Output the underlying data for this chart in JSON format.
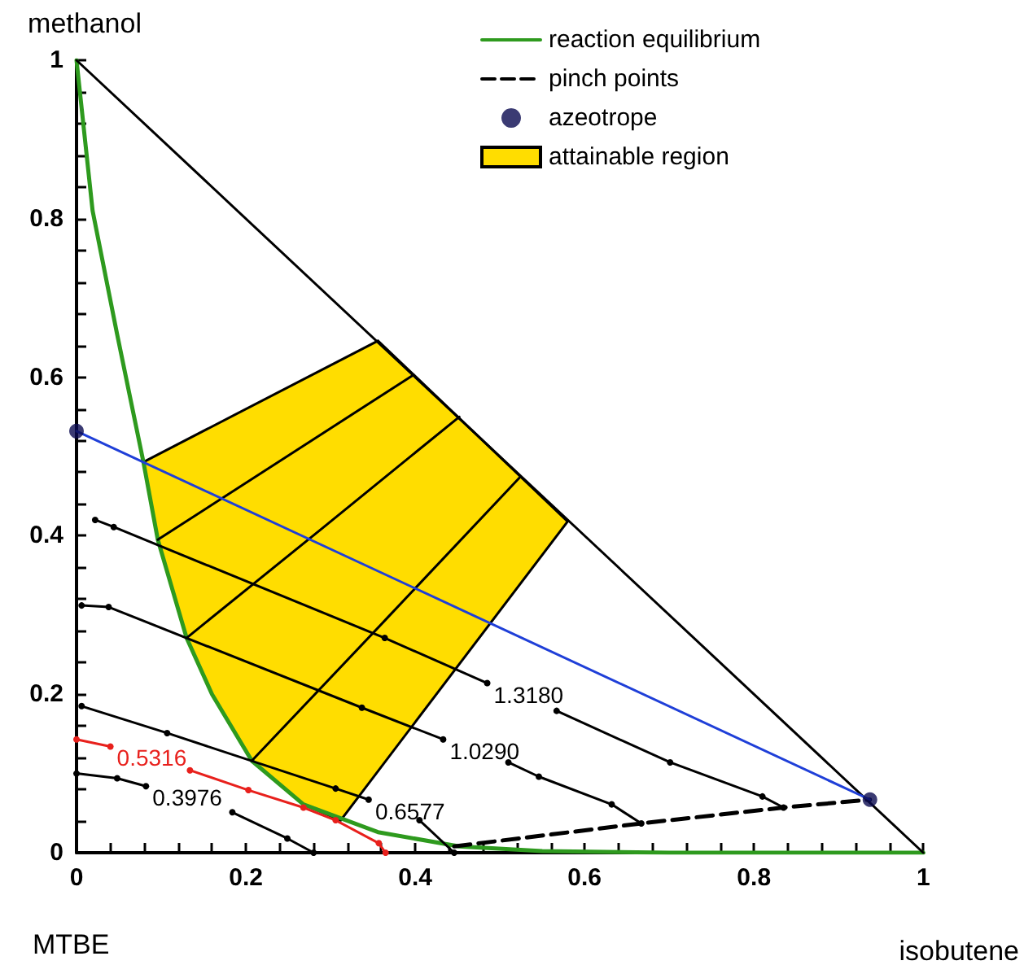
{
  "chart_data": {
    "type": "line",
    "xlabel": "isobutene",
    "ylabel": "methanol",
    "xlim": [
      0,
      1
    ],
    "ylim": [
      0,
      1
    ],
    "xticks": [
      0,
      {
        "value": 0.04,
        "label": null
      },
      {
        "value": 0.08,
        "label": null
      },
      {
        "value": 0.12,
        "label": null
      },
      {
        "value": 0.16,
        "label": null
      },
      0.2,
      {
        "value": 0.24,
        "label": null
      },
      {
        "value": 0.28,
        "label": null
      },
      {
        "value": 0.32,
        "label": null
      },
      {
        "value": 0.36,
        "label": null
      },
      0.4,
      {
        "value": 0.44,
        "label": null
      },
      {
        "value": 0.48,
        "label": null
      },
      {
        "value": 0.52,
        "label": null
      },
      {
        "value": 0.56,
        "label": null
      },
      0.6,
      {
        "value": 0.64,
        "label": null
      },
      {
        "value": 0.68,
        "label": null
      },
      {
        "value": 0.72,
        "label": null
      },
      {
        "value": 0.76,
        "label": null
      },
      0.8,
      {
        "value": 0.84,
        "label": null
      },
      {
        "value": 0.88,
        "label": null
      },
      {
        "value": 0.92,
        "label": null
      },
      {
        "value": 0.96,
        "label": null
      },
      1
    ],
    "yticks": [
      0,
      {
        "value": 0.04,
        "label": null
      },
      {
        "value": 0.08,
        "label": null
      },
      {
        "value": 0.12,
        "label": null
      },
      {
        "value": 0.16,
        "label": null
      },
      0.2,
      {
        "value": 0.24,
        "label": null
      },
      {
        "value": 0.28,
        "label": null
      },
      {
        "value": 0.32,
        "label": null
      },
      {
        "value": 0.36,
        "label": null
      },
      0.4,
      {
        "value": 0.44,
        "label": null
      },
      {
        "value": 0.48,
        "label": null
      },
      {
        "value": 0.52,
        "label": null
      },
      {
        "value": 0.56,
        "label": null
      },
      0.6,
      {
        "value": 0.64,
        "label": null
      },
      {
        "value": 0.68,
        "label": null
      },
      {
        "value": 0.72,
        "label": null
      },
      {
        "value": 0.76,
        "label": null
      },
      0.8,
      {
        "value": 0.84,
        "label": null
      },
      {
        "value": 0.88,
        "label": null
      },
      {
        "value": 0.92,
        "label": null
      },
      {
        "value": 0.96,
        "label": null
      },
      1
    ],
    "grid": false,
    "legend": "top right",
    "line_style": "solid",
    "series": [
      {
        "name": "reaction equilibrium",
        "color": "#2e9a1e",
        "x": [
          0,
          0.019,
          0.048,
          0.079,
          0.096,
          0.13,
          0.16,
          0.207,
          0.268,
          0.356,
          0.452,
          0.55,
          0.7,
          1
        ],
        "values": [
          1,
          0.81,
          0.654,
          0.493,
          0.395,
          0.271,
          0.2,
          0.116,
          0.061,
          0.026,
          0.008,
          0.002,
          0,
          0
        ]
      },
      {
        "name": "pinch points",
        "color": "#000000",
        "line_style": "dashed",
        "x": [
          0.446,
          0.667,
          0.835,
          0.937
        ],
        "values": [
          0.008,
          0.037,
          0.057,
          0.067
        ]
      },
      {
        "name": "azeotrope",
        "type": "scatter",
        "marker": "circle",
        "color": "#0a0a50",
        "x": [
          0,
          0.937
        ],
        "values": [
          0.532,
          0.067
        ]
      },
      {
        "name": "attainable region",
        "type": "area",
        "color": "#ffdd00",
        "x": [
          0.079,
          0.356,
          0.58,
          0.312,
          0.268,
          0.207,
          0.16,
          0.13,
          0.096
        ],
        "values": [
          0.493,
          0.646,
          0.418,
          0.041,
          0.061,
          0.116,
          0.2,
          0.271,
          0.395
        ]
      },
      {
        "color": "#000000",
        "x": [
          0,
          0.5,
          1
        ],
        "values": [
          1,
          0.5,
          0
        ]
      },
      {
        "color": "#000000",
        "x": [
          0.096,
          0.247,
          0.398
        ],
        "values": [
          0.395,
          0.499,
          0.603
        ]
      },
      {
        "color": "#000000",
        "x": [
          0.13,
          0.291,
          0.452
        ],
        "values": [
          0.271,
          0.41,
          0.55
        ]
      },
      {
        "color": "#000000",
        "x": [
          0.207,
          0.365,
          0.523
        ],
        "values": [
          0.116,
          0.294,
          0.473
        ]
      },
      {
        "color": "#1f3fd8",
        "x": [
          0,
          0.395,
          0.937
        ],
        "values": [
          0.532,
          0.336,
          0.067
        ]
      },
      {
        "color": "#000000",
        "marker": "circle",
        "x": [
          0.022,
          0.044,
          0.364,
          0.485,
          0.542,
          0.567,
          0.701,
          0.81,
          0.835
        ],
        "values": [
          0.42,
          0.411,
          0.271,
          0.214,
          null,
          0.179,
          0.114,
          0.071,
          0.057
        ]
      },
      {
        "color": "#000000",
        "marker": "circle",
        "x": [
          0.006,
          0.038,
          0.337,
          0.433,
          0.485,
          0.51,
          0.546,
          0.632,
          0.667
        ],
        "values": [
          0.312,
          0.31,
          0.183,
          0.143,
          null,
          0.114,
          0.096,
          0.061,
          0.037
        ]
      },
      {
        "color": "#000000",
        "marker": "circle",
        "x": [
          0.006,
          0.107,
          0.306,
          0.345,
          0.4,
          0.405,
          0.446
        ],
        "values": [
          0.185,
          0.151,
          0.081,
          0.067,
          null,
          0.041,
          0
        ]
      },
      {
        "color": "#e8201c",
        "marker": "circle",
        "x": [
          0,
          0.04,
          0.092,
          0.134,
          0.203,
          0.268,
          0.306,
          0.357,
          0.365
        ],
        "values": [
          0.143,
          0.134,
          null,
          0.104,
          0.079,
          0.057,
          0.041,
          0.012,
          0
        ]
      },
      {
        "color": "#000000",
        "marker": "circle",
        "x": [
          0,
          0.048,
          0.082,
          0.134,
          0.184,
          0.249,
          0.28
        ],
        "values": [
          0.1,
          0.094,
          0.084,
          null,
          0.051,
          0.018,
          0
        ]
      }
    ],
    "annotations": [
      "MTBE",
      {
        "text": "1.3180",
        "x": 0.485,
        "y": 0.214
      },
      {
        "text": "1.0290",
        "x": 0.433,
        "y": 0.143
      },
      {
        "text": "0.6577",
        "x": 0.345,
        "y": 0.067
      },
      {
        "text": "0.5316",
        "x": 0.04,
        "y": 0.134
      },
      {
        "text": "0.3976",
        "x": 0.082,
        "y": 0.084
      }
    ]
  }
}
